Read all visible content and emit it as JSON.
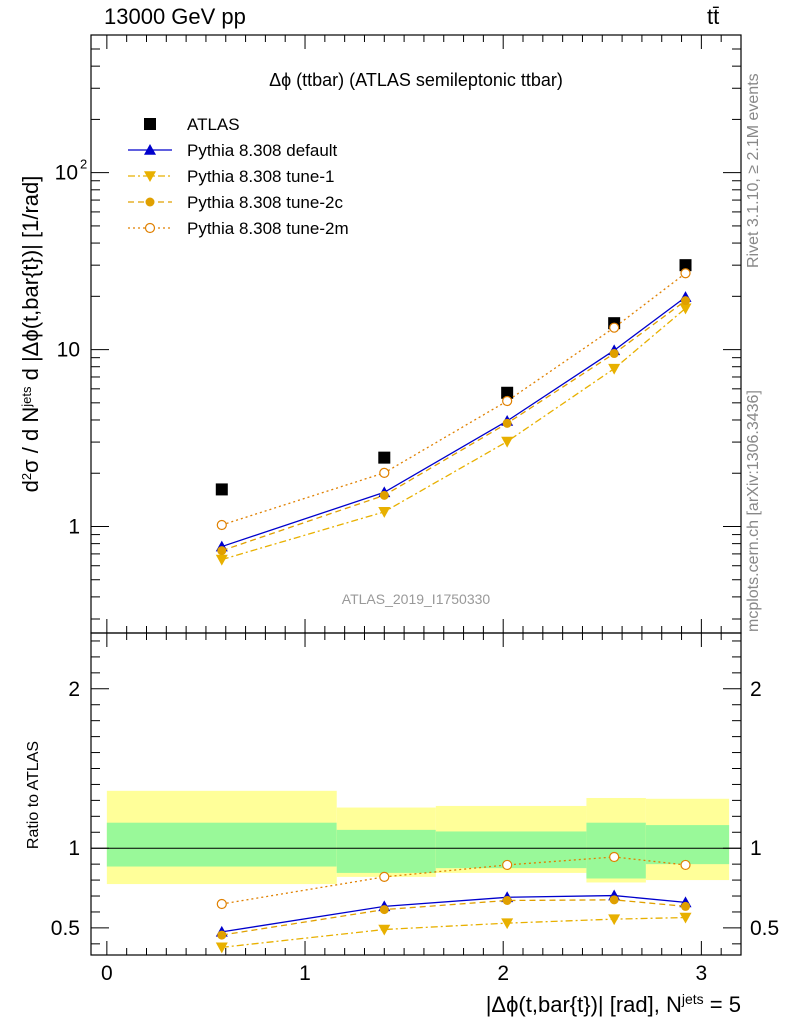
{
  "header": {
    "left": "13000 GeV pp",
    "right": "tt̄"
  },
  "side_labels": {
    "rivet": "Rivet 3.1.10, ≥ 2.1M events",
    "mcplots": "mcplots.cern.ch [arXiv:1306.3436]"
  },
  "chart_data": [
    {
      "type": "scatter",
      "title": "Δϕ (ttbar) (ATLAS semileptonic ttbar)",
      "watermark": "ATLAS_2019_I1750330",
      "ylabel": "d²σ / d N^jets d |Δϕ(t,bar{t})| [1/rad]",
      "yscale": "log",
      "ylim": [
        0.25,
        600
      ],
      "xlim": [
        -0.08,
        3.2
      ],
      "x_ticks": [
        "0",
        "1",
        "2",
        "3"
      ],
      "y_ticks": [
        "1",
        "10",
        "10²"
      ],
      "legend_position": "top-left",
      "x": [
        0.58,
        1.4,
        2.02,
        2.56,
        2.92
      ],
      "series": [
        {
          "name": "ATLAS",
          "values": [
            1.62,
            2.45,
            5.7,
            14.1,
            30.0
          ],
          "color": "#000000",
          "marker": "square",
          "line": "none"
        },
        {
          "name": "Pythia 8.308 default",
          "values": [
            0.77,
            1.56,
            3.95,
            9.9,
            19.8
          ],
          "color": "#0000cc",
          "marker": "triangle-up",
          "line": "solid"
        },
        {
          "name": "Pythia 8.308 tune-1",
          "values": [
            0.65,
            1.21,
            3.02,
            7.8,
            17.1
          ],
          "color": "#e8b000",
          "marker": "triangle-down",
          "line": "dashdot"
        },
        {
          "name": "Pythia 8.308 tune-2c",
          "values": [
            0.73,
            1.5,
            3.83,
            9.5,
            18.9
          ],
          "color": "#e0a000",
          "marker": "circle",
          "line": "dashed"
        },
        {
          "name": "Pythia 8.308 tune-2m",
          "values": [
            1.02,
            2.01,
            5.12,
            13.3,
            27.0
          ],
          "color": "#e08000",
          "marker": "open-circle",
          "line": "dotted"
        }
      ]
    },
    {
      "type": "line",
      "ylabel": "Ratio to ATLAS",
      "ylim": [
        0.33,
        2.35
      ],
      "y_ticks": [
        "0.5",
        "1",
        "2"
      ],
      "x_ticks": [
        "0",
        "1",
        "2",
        "3"
      ],
      "xlabel": "|Δϕ(t,bar{t})| [rad], N^jets = 5",
      "uncertainty_bands": [
        {
          "x0": 0.0,
          "x1": 1.16,
          "yellow": [
            0.775,
            1.36
          ],
          "green": [
            0.885,
            1.16
          ]
        },
        {
          "x0": 1.16,
          "x1": 1.66,
          "yellow": [
            0.82,
            1.255
          ],
          "green": [
            0.845,
            1.115
          ]
        },
        {
          "x0": 1.66,
          "x1": 2.42,
          "yellow": [
            0.845,
            1.265
          ],
          "green": [
            0.875,
            1.105
          ]
        },
        {
          "x0": 2.42,
          "x1": 2.72,
          "yellow": [
            0.785,
            1.315
          ],
          "green": [
            0.81,
            1.16
          ]
        },
        {
          "x0": 2.72,
          "x1": 3.14,
          "yellow": [
            0.8,
            1.31
          ],
          "green": [
            0.9,
            1.145
          ]
        }
      ],
      "x": [
        0.58,
        1.4,
        2.02,
        2.56,
        2.92
      ],
      "series": [
        {
          "name": "Pythia 8.308 default",
          "values": [
            0.475,
            0.635,
            0.692,
            0.703,
            0.66
          ],
          "color": "#0000cc",
          "marker": "triangle-up",
          "line": "solid"
        },
        {
          "name": "Pythia 8.308 tune-1",
          "values": [
            0.378,
            0.49,
            0.53,
            0.555,
            0.565
          ],
          "color": "#e8b000",
          "marker": "triangle-down",
          "line": "dashdot"
        },
        {
          "name": "Pythia 8.308 tune-2c",
          "values": [
            0.455,
            0.615,
            0.672,
            0.676,
            0.635
          ],
          "color": "#e0a000",
          "marker": "circle",
          "line": "dashed"
        },
        {
          "name": "Pythia 8.308 tune-2m",
          "values": [
            0.65,
            0.82,
            0.895,
            0.945,
            0.895
          ],
          "color": "#e08000",
          "marker": "open-circle",
          "line": "dotted"
        }
      ]
    }
  ]
}
